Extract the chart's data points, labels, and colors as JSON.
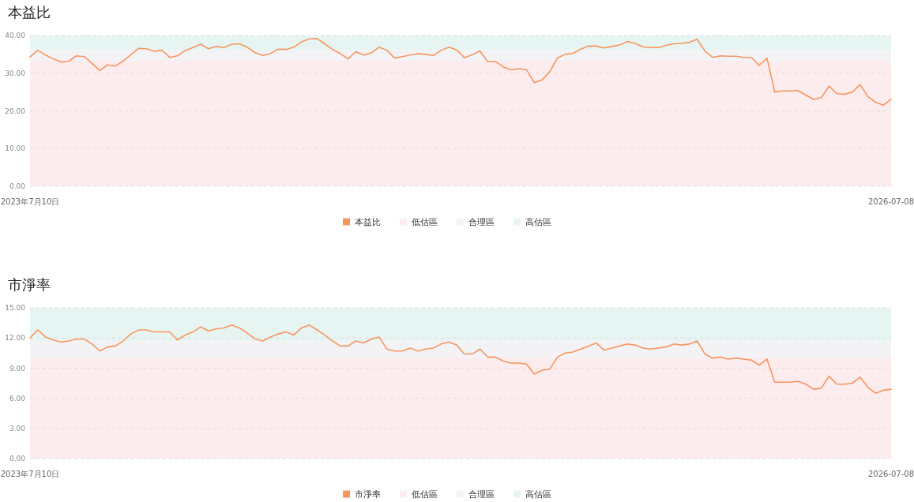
{
  "chart_data": [
    {
      "type": "line",
      "title": "本益比",
      "categories": [
        "2023年7月10日",
        null,
        null,
        null,
        null,
        null,
        null,
        null,
        null,
        null,
        null,
        null,
        null,
        null,
        null,
        null,
        null,
        null,
        null,
        null,
        null,
        null,
        null,
        null,
        null,
        null,
        null,
        null,
        null,
        null,
        null,
        null,
        null,
        null,
        null,
        null,
        null,
        null,
        null,
        null,
        null,
        null,
        null,
        null,
        null,
        null,
        null,
        null,
        null,
        null,
        null,
        null,
        null,
        null,
        null,
        null,
        null,
        null,
        null,
        null,
        null,
        null,
        null,
        null,
        null,
        null,
        null,
        null,
        null,
        null,
        null,
        null,
        null,
        null,
        null,
        null,
        null,
        null,
        null,
        null,
        null,
        null,
        null,
        null,
        null,
        null,
        null,
        null,
        null,
        null,
        null,
        null,
        null,
        null,
        null,
        null,
        null,
        null,
        null,
        null,
        null,
        null,
        null,
        null,
        null,
        null,
        null,
        null,
        null,
        null,
        null,
        "2026-07-08"
      ],
      "series": [
        {
          "name": "本益比",
          "color": "#f7955f",
          "values": [
            34.3,
            36.1,
            34.8,
            33.8,
            33.0,
            33.2,
            34.6,
            34.4,
            32.6,
            30.7,
            32.2,
            31.9,
            33.2,
            34.9,
            36.6,
            36.5,
            35.8,
            36.1,
            34.2,
            34.6,
            36.0,
            36.8,
            37.7,
            36.5,
            37.1,
            36.8,
            37.7,
            37.8,
            36.9,
            35.5,
            34.7,
            35.2,
            36.4,
            36.3,
            36.9,
            38.3,
            39.1,
            39.2,
            37.8,
            36.3,
            35.2,
            33.8,
            35.7,
            34.8,
            35.4,
            36.9,
            36.1,
            34.0,
            34.4,
            34.8,
            35.2,
            35.0,
            34.7,
            36.1,
            36.9,
            36.2,
            34.1,
            34.9,
            35.9,
            33.1,
            33.1,
            31.7,
            30.9,
            31.2,
            30.9,
            27.5,
            28.2,
            30.4,
            34.1,
            35.0,
            35.3,
            36.4,
            37.2,
            37.2,
            36.7,
            37.1,
            37.5,
            38.4,
            37.9,
            37.0,
            36.8,
            36.8,
            37.4,
            37.8,
            37.9,
            38.2,
            39.0,
            35.9,
            34.2,
            34.6,
            34.5,
            34.5,
            34.2,
            34.2,
            32.1,
            34.0,
            25.0,
            25.3,
            25.3,
            25.4,
            24.2,
            23.1,
            23.5,
            26.6,
            24.6,
            24.4,
            25.0,
            27.0,
            23.8,
            22.3,
            21.5,
            23.1
          ]
        }
      ],
      "ylim": [
        0,
        40
      ],
      "yticks": [
        {
          "value": 0,
          "label": "0.00"
        },
        {
          "value": 10,
          "label": "10.00"
        },
        {
          "value": 20,
          "label": "20.00"
        },
        {
          "value": 30,
          "label": "30.00"
        },
        {
          "value": 40,
          "label": "40.00"
        }
      ],
      "grid": "y",
      "legend": "bottom",
      "bands": [
        {
          "axis": "y",
          "from": 0,
          "to": 33.3,
          "label": "低估區",
          "color": "#fdecee"
        },
        {
          "axis": "y",
          "from": 33.3,
          "to": 36.2,
          "label": "合理區",
          "color": "#f3f3f6"
        },
        {
          "axis": "y",
          "from": 36.2,
          "to": 40,
          "label": "高估區",
          "color": "#e7f5f2"
        }
      ]
    },
    {
      "type": "line",
      "title": "市淨率",
      "categories": [
        "2023年7月10日",
        null,
        null,
        null,
        null,
        null,
        null,
        null,
        null,
        null,
        null,
        null,
        null,
        null,
        null,
        null,
        null,
        null,
        null,
        null,
        null,
        null,
        null,
        null,
        null,
        null,
        null,
        null,
        null,
        null,
        null,
        null,
        null,
        null,
        null,
        null,
        null,
        null,
        null,
        null,
        null,
        null,
        null,
        null,
        null,
        null,
        null,
        null,
        null,
        null,
        null,
        null,
        null,
        null,
        null,
        null,
        null,
        null,
        null,
        null,
        null,
        null,
        null,
        null,
        null,
        null,
        null,
        null,
        null,
        null,
        null,
        null,
        null,
        null,
        null,
        null,
        null,
        null,
        null,
        null,
        null,
        null,
        null,
        null,
        null,
        null,
        null,
        null,
        null,
        null,
        null,
        null,
        null,
        null,
        null,
        null,
        null,
        null,
        null,
        null,
        null,
        null,
        null,
        null,
        null,
        null,
        null,
        null,
        null,
        null,
        null,
        "2026-07-08"
      ],
      "series": [
        {
          "name": "市淨率",
          "color": "#f7955f",
          "values": [
            12.0,
            12.8,
            12.1,
            11.8,
            11.6,
            11.7,
            11.9,
            11.9,
            11.4,
            10.7,
            11.1,
            11.2,
            11.7,
            12.4,
            12.8,
            12.8,
            12.6,
            12.6,
            12.6,
            11.8,
            12.3,
            12.6,
            13.1,
            12.7,
            12.9,
            13.0,
            13.3,
            13.0,
            12.5,
            11.9,
            11.7,
            12.1,
            12.4,
            12.6,
            12.3,
            13.0,
            13.3,
            12.8,
            12.3,
            11.7,
            11.2,
            11.2,
            11.7,
            11.5,
            11.9,
            12.1,
            10.9,
            10.7,
            10.7,
            11.0,
            10.7,
            10.9,
            11.0,
            11.4,
            11.6,
            11.3,
            10.4,
            10.4,
            10.9,
            10.1,
            10.1,
            9.7,
            9.5,
            9.5,
            9.4,
            8.4,
            8.8,
            8.9,
            10.1,
            10.5,
            10.6,
            10.9,
            11.2,
            11.5,
            10.8,
            11.0,
            11.2,
            11.4,
            11.3,
            11.0,
            10.9,
            11.0,
            11.1,
            11.4,
            11.3,
            11.4,
            11.7,
            10.4,
            10.0,
            10.1,
            9.9,
            10.0,
            9.9,
            9.8,
            9.3,
            9.9,
            7.6,
            7.6,
            7.6,
            7.7,
            7.4,
            6.9,
            7.0,
            8.2,
            7.4,
            7.4,
            7.5,
            8.1,
            7.1,
            6.5,
            6.8,
            6.9
          ]
        }
      ],
      "ylim": [
        0,
        15
      ],
      "yticks": [
        {
          "value": 0,
          "label": "0.00"
        },
        {
          "value": 3,
          "label": "3.00"
        },
        {
          "value": 6,
          "label": "6.00"
        },
        {
          "value": 9,
          "label": "9.00"
        },
        {
          "value": 12,
          "label": "12.00"
        },
        {
          "value": 15,
          "label": "15.00"
        }
      ],
      "grid": "y",
      "legend": "bottom",
      "bands": [
        {
          "axis": "y",
          "from": 0,
          "to": 10.1,
          "label": "低估區",
          "color": "#fdecee"
        },
        {
          "axis": "y",
          "from": 10.1,
          "to": 11.7,
          "label": "合理區",
          "color": "#f3f3f6"
        },
        {
          "axis": "y",
          "from": 11.7,
          "to": 15,
          "label": "高估區",
          "color": "#e7f5f2"
        }
      ]
    }
  ]
}
